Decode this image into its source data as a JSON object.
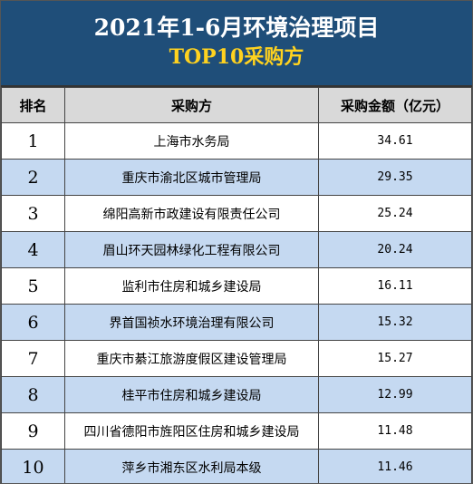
{
  "header": {
    "title": "2021年1-6月环境治理项目",
    "subtitle": "TOP10采购方"
  },
  "table": {
    "columns": [
      "排名",
      "采购方",
      "采购金额（亿元）"
    ],
    "rows": [
      [
        "1",
        "上海市水务局",
        "34.61"
      ],
      [
        "2",
        "重庆市渝北区城市管理局",
        "29.35"
      ],
      [
        "3",
        "绵阳高新市政建设有限责任公司",
        "25.24"
      ],
      [
        "4",
        "眉山环天园林绿化工程有限公司",
        "20.24"
      ],
      [
        "5",
        "监利市住房和城乡建设局",
        "16.11"
      ],
      [
        "6",
        "界首国祯水环境治理有限公司",
        "15.32"
      ],
      [
        "7",
        "重庆市綦江旅游度假区建设管理局",
        "15.27"
      ],
      [
        "8",
        "桂平市住房和城乡建设局",
        "12.99"
      ],
      [
        "9",
        "四川省德阳市旌阳区住房和城乡建设局",
        "11.48"
      ],
      [
        "10",
        "萍乡市湘东区水利局本级",
        "11.46"
      ]
    ]
  }
}
